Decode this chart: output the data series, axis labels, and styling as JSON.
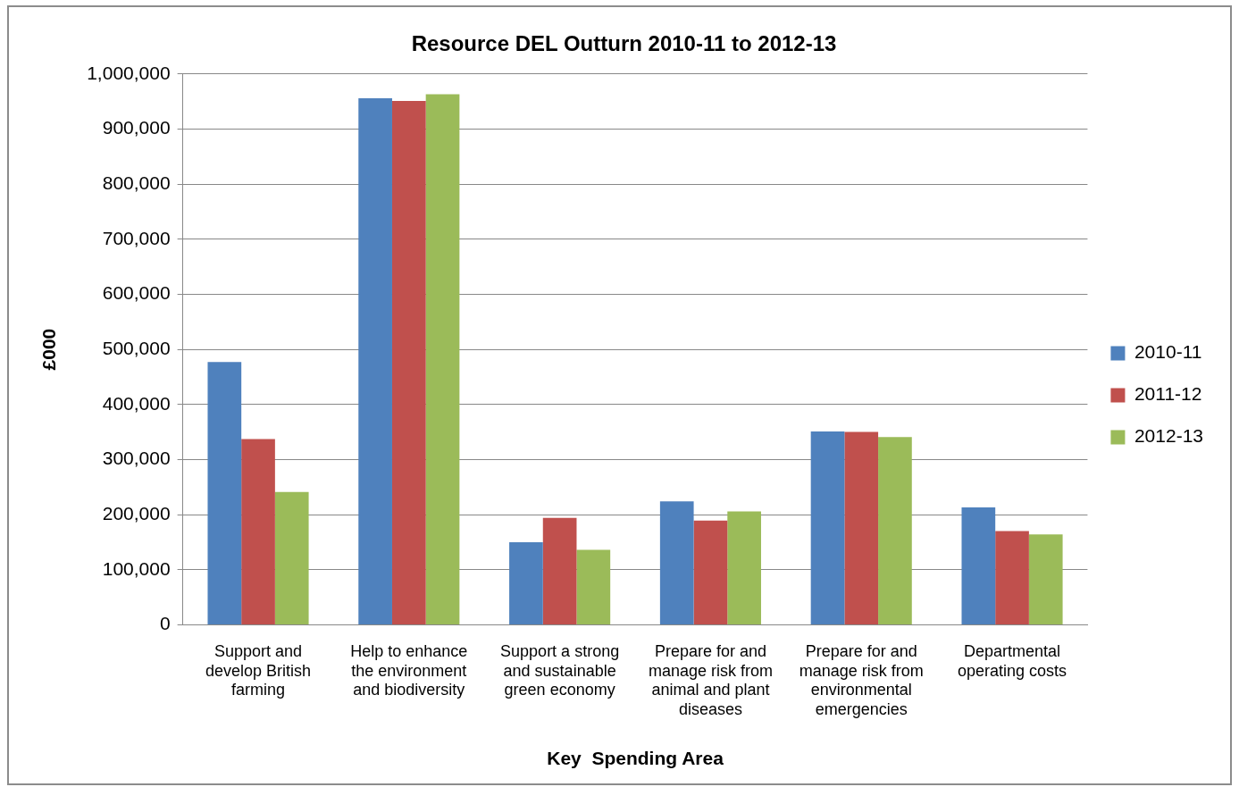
{
  "chart_data": {
    "type": "bar",
    "title": "Resource DEL Outturn 2010-11 to 2012-13",
    "xlabel": "Key  Spending Area",
    "ylabel": "£000",
    "categories": [
      "Support and develop British farming",
      "Help to enhance the environment and biodiversity",
      "Support a strong and sustainable green economy",
      "Prepare for and manage risk from animal and plant diseases",
      "Prepare for and manage risk from environmental emergencies",
      "Departmental operating costs"
    ],
    "series": [
      {
        "name": "2010-11",
        "color": "#4f81bd",
        "values": [
          477000,
          956000,
          150000,
          224000,
          351000,
          213000
        ]
      },
      {
        "name": "2011-12",
        "color": "#c0504d",
        "values": [
          337000,
          951000,
          194000,
          189000,
          350000,
          170000
        ]
      },
      {
        "name": "2012-13",
        "color": "#9bbb59",
        "values": [
          241000,
          963000,
          136000,
          206000,
          341000,
          164000
        ]
      }
    ],
    "ylim": [
      0,
      1000000
    ],
    "yticks": [
      0,
      {
        "value": 100000,
        "label": "100,000"
      },
      {
        "value": 200000,
        "label": "200,000"
      },
      {
        "value": 300000,
        "label": "300,000"
      },
      {
        "value": 400000,
        "label": "400,000"
      },
      {
        "value": 500000,
        "label": "500,000"
      },
      {
        "value": 600000,
        "label": "600,000"
      },
      {
        "value": 700000,
        "label": "700,000"
      },
      {
        "value": 800000,
        "label": "800,000"
      },
      {
        "value": 900000,
        "label": "900,000"
      },
      {
        "value": 1000000,
        "label": "1,000,000"
      }
    ],
    "grid": "y",
    "legend": "right"
  }
}
